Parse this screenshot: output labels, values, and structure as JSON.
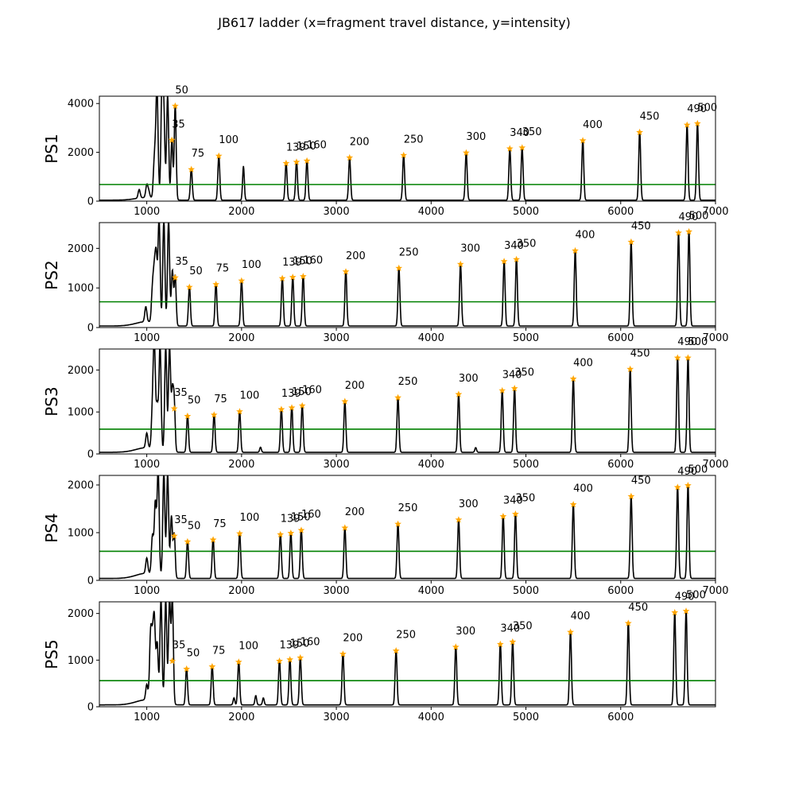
{
  "figure_title": "JB617 ladder (x=fragment travel distance, y=intensity)",
  "colors": {
    "trace": "#000000",
    "threshold": "#008000",
    "peak_marker": "#ffa500"
  },
  "chart_data": [
    {
      "type": "line",
      "panel": "PS1",
      "ylabel": "PS1",
      "xlim": [
        500,
        7000
      ],
      "ylim": [
        0,
        4300
      ],
      "xticks": [
        1000,
        2000,
        3000,
        4000,
        5000,
        6000,
        7000
      ],
      "yticks": [
        0,
        2000,
        4000
      ],
      "threshold": 680,
      "early_peaks": [
        [
          920,
          350
        ],
        [
          1000,
          500
        ],
        [
          1020,
          250
        ],
        [
          1080,
          1500
        ],
        [
          1100,
          1500
        ],
        [
          1110,
          3400
        ],
        [
          1160,
          4300
        ],
        [
          1180,
          3300
        ],
        [
          1220,
          4300
        ]
      ],
      "extra_peaks": [
        [
          2020,
          1400
        ]
      ],
      "ladder": [
        {
          "label": "35",
          "x": 1265,
          "y": 2500
        },
        {
          "label": "50",
          "x": 1300,
          "y": 3900
        },
        {
          "label": "75",
          "x": 1470,
          "y": 1300
        },
        {
          "label": "100",
          "x": 1760,
          "y": 1850
        },
        {
          "label": "139",
          "x": 2470,
          "y": 1550
        },
        {
          "label": "150",
          "x": 2580,
          "y": 1600
        },
        {
          "label": "160",
          "x": 2690,
          "y": 1650
        },
        {
          "label": "200",
          "x": 3140,
          "y": 1780
        },
        {
          "label": "250",
          "x": 3710,
          "y": 1880
        },
        {
          "label": "300",
          "x": 4370,
          "y": 1980
        },
        {
          "label": "340",
          "x": 4830,
          "y": 2150
        },
        {
          "label": "350",
          "x": 4960,
          "y": 2190
        },
        {
          "label": "400",
          "x": 5600,
          "y": 2480
        },
        {
          "label": "450",
          "x": 6200,
          "y": 2820
        },
        {
          "label": "490",
          "x": 6700,
          "y": 3120
        },
        {
          "label": "500",
          "x": 6810,
          "y": 3180
        }
      ]
    },
    {
      "type": "line",
      "panel": "PS2",
      "ylabel": "PS2",
      "xlim": [
        500,
        7000
      ],
      "ylim": [
        0,
        2650
      ],
      "xticks": [
        1000,
        2000,
        3000,
        4000,
        5000,
        6000,
        7000
      ],
      "yticks": [
        0,
        1000,
        2000
      ],
      "threshold": 650,
      "early_peaks": [
        [
          990,
          380
        ],
        [
          1060,
          800
        ],
        [
          1080,
          1150
        ],
        [
          1100,
          1600
        ],
        [
          1130,
          2650
        ],
        [
          1180,
          2650
        ],
        [
          1230,
          2650
        ],
        [
          1270,
          1400
        ]
      ],
      "extra_peaks": [],
      "ladder": [
        {
          "label": "35",
          "x": 1300,
          "y": 1260
        },
        {
          "label": "50",
          "x": 1450,
          "y": 1020
        },
        {
          "label": "75",
          "x": 1730,
          "y": 1090
        },
        {
          "label": "100",
          "x": 2000,
          "y": 1180
        },
        {
          "label": "139",
          "x": 2430,
          "y": 1240
        },
        {
          "label": "150",
          "x": 2540,
          "y": 1270
        },
        {
          "label": "160",
          "x": 2650,
          "y": 1290
        },
        {
          "label": "200",
          "x": 3100,
          "y": 1410
        },
        {
          "label": "250",
          "x": 3660,
          "y": 1500
        },
        {
          "label": "300",
          "x": 4310,
          "y": 1600
        },
        {
          "label": "340",
          "x": 4770,
          "y": 1670
        },
        {
          "label": "350",
          "x": 4900,
          "y": 1720
        },
        {
          "label": "400",
          "x": 5520,
          "y": 1940
        },
        {
          "label": "450",
          "x": 6110,
          "y": 2160
        },
        {
          "label": "490",
          "x": 6610,
          "y": 2390
        },
        {
          "label": "500",
          "x": 6720,
          "y": 2420
        }
      ]
    },
    {
      "type": "line",
      "panel": "PS3",
      "ylabel": "PS3",
      "xlim": [
        500,
        7000
      ],
      "ylim": [
        0,
        2500
      ],
      "xticks": [
        1000,
        2000,
        3000,
        4000,
        5000,
        6000,
        7000
      ],
      "yticks": [
        0,
        1000,
        2000
      ],
      "threshold": 590,
      "early_peaks": [
        [
          1000,
          350
        ],
        [
          1060,
          900
        ],
        [
          1080,
          2450
        ],
        [
          1110,
          1050
        ],
        [
          1140,
          2500
        ],
        [
          1200,
          2500
        ],
        [
          1240,
          2500
        ],
        [
          1270,
          1400
        ]
      ],
      "extra_peaks": [
        [
          2200,
          120
        ],
        [
          4470,
          110
        ]
      ],
      "ladder": [
        {
          "label": "35",
          "x": 1290,
          "y": 1080
        },
        {
          "label": "50",
          "x": 1430,
          "y": 900
        },
        {
          "label": "75",
          "x": 1710,
          "y": 930
        },
        {
          "label": "100",
          "x": 1980,
          "y": 1010
        },
        {
          "label": "139",
          "x": 2420,
          "y": 1060
        },
        {
          "label": "150",
          "x": 2530,
          "y": 1100
        },
        {
          "label": "160",
          "x": 2640,
          "y": 1150
        },
        {
          "label": "200",
          "x": 3090,
          "y": 1250
        },
        {
          "label": "250",
          "x": 3650,
          "y": 1340
        },
        {
          "label": "300",
          "x": 4290,
          "y": 1420
        },
        {
          "label": "340",
          "x": 4750,
          "y": 1510
        },
        {
          "label": "350",
          "x": 4880,
          "y": 1560
        },
        {
          "label": "400",
          "x": 5500,
          "y": 1790
        },
        {
          "label": "450",
          "x": 6100,
          "y": 2020
        },
        {
          "label": "490",
          "x": 6600,
          "y": 2290
        },
        {
          "label": "500",
          "x": 6710,
          "y": 2290
        }
      ]
    },
    {
      "type": "line",
      "panel": "PS4",
      "ylabel": "PS4",
      "xlim": [
        500,
        7000
      ],
      "ylim": [
        0,
        2200
      ],
      "xticks": [
        1000,
        2000,
        3000,
        4000,
        5000,
        6000,
        7000
      ],
      "yticks": [
        0,
        1000,
        2000
      ],
      "threshold": 610,
      "early_peaks": [
        [
          1000,
          320
        ],
        [
          1060,
          800
        ],
        [
          1090,
          1500
        ],
        [
          1120,
          2200
        ],
        [
          1180,
          2200
        ],
        [
          1220,
          2200
        ],
        [
          1260,
          1300
        ]
      ],
      "extra_peaks": [],
      "ladder": [
        {
          "label": "35",
          "x": 1290,
          "y": 930
        },
        {
          "label": "50",
          "x": 1430,
          "y": 810
        },
        {
          "label": "75",
          "x": 1700,
          "y": 850
        },
        {
          "label": "100",
          "x": 1980,
          "y": 980
        },
        {
          "label": "139",
          "x": 2410,
          "y": 960
        },
        {
          "label": "150",
          "x": 2520,
          "y": 990
        },
        {
          "label": "160",
          "x": 2630,
          "y": 1050
        },
        {
          "label": "200",
          "x": 3090,
          "y": 1100
        },
        {
          "label": "250",
          "x": 3650,
          "y": 1180
        },
        {
          "label": "300",
          "x": 4290,
          "y": 1270
        },
        {
          "label": "340",
          "x": 4760,
          "y": 1340
        },
        {
          "label": "350",
          "x": 4890,
          "y": 1390
        },
        {
          "label": "400",
          "x": 5500,
          "y": 1590
        },
        {
          "label": "450",
          "x": 6110,
          "y": 1760
        },
        {
          "label": "490",
          "x": 6600,
          "y": 1950
        },
        {
          "label": "500",
          "x": 6710,
          "y": 1990
        }
      ]
    },
    {
      "type": "line",
      "panel": "PS5",
      "ylabel": "PS5",
      "xlim": [
        500,
        7000
      ],
      "ylim": [
        0,
        2250
      ],
      "xticks": [
        1000,
        2000,
        3000,
        4000,
        5000,
        6000
      ],
      "yticks": [
        0,
        1000,
        2000
      ],
      "threshold": 560,
      "early_peaks": [
        [
          1000,
          330
        ],
        [
          1040,
          1350
        ],
        [
          1060,
          1050
        ],
        [
          1080,
          1650
        ],
        [
          1110,
          1250
        ],
        [
          1150,
          2250
        ],
        [
          1200,
          2250
        ],
        [
          1240,
          2250
        ],
        [
          1270,
          1300
        ]
      ],
      "extra_peaks": [
        [
          1920,
          150
        ],
        [
          2150,
          200
        ],
        [
          2230,
          150
        ]
      ],
      "ladder": [
        {
          "label": "35",
          "x": 1270,
          "y": 980
        },
        {
          "label": "50",
          "x": 1420,
          "y": 810
        },
        {
          "label": "75",
          "x": 1690,
          "y": 860
        },
        {
          "label": "100",
          "x": 1970,
          "y": 960
        },
        {
          "label": "139",
          "x": 2400,
          "y": 980
        },
        {
          "label": "150",
          "x": 2510,
          "y": 1010
        },
        {
          "label": "160",
          "x": 2620,
          "y": 1050
        },
        {
          "label": "200",
          "x": 3070,
          "y": 1130
        },
        {
          "label": "250",
          "x": 3630,
          "y": 1200
        },
        {
          "label": "300",
          "x": 4260,
          "y": 1280
        },
        {
          "label": "340",
          "x": 4730,
          "y": 1340
        },
        {
          "label": "350",
          "x": 4860,
          "y": 1390
        },
        {
          "label": "400",
          "x": 5470,
          "y": 1600
        },
        {
          "label": "450",
          "x": 6080,
          "y": 1790
        },
        {
          "label": "490",
          "x": 6570,
          "y": 2020
        },
        {
          "label": "500",
          "x": 6690,
          "y": 2050
        }
      ]
    }
  ]
}
